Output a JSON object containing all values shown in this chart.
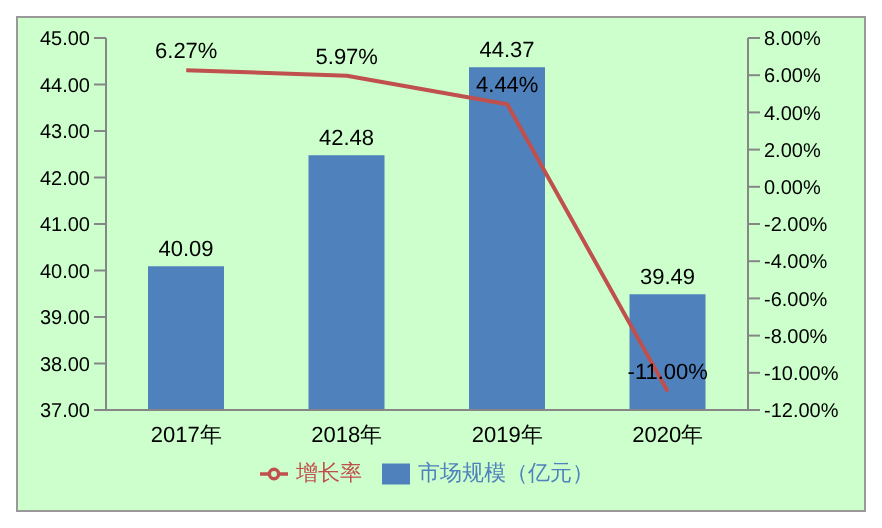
{
  "chart_data": {
    "type": "bar",
    "categories": [
      "2017年",
      "2018年",
      "2019年",
      "2020年"
    ],
    "series": [
      {
        "name": "市场规模（亿元）",
        "color": "#4f81bd",
        "values": [
          40.09,
          42.48,
          44.37,
          39.49
        ]
      },
      {
        "name": "增长率",
        "type": "line",
        "axis": "y2",
        "color": "#c0504d",
        "values": [
          6.27,
          5.97,
          4.44,
          -11.0
        ],
        "value_labels": [
          "6.27%",
          "5.97%",
          "4.44%",
          "-11.00%"
        ]
      }
    ],
    "ylim": [
      37,
      45
    ],
    "yticks": [
      {
        "value": 37,
        "label": "37.00"
      },
      {
        "value": 38,
        "label": "38.00"
      },
      {
        "value": 39,
        "label": "39.00"
      },
      {
        "value": 40,
        "label": "40.00"
      },
      {
        "value": 41,
        "label": "41.00"
      },
      {
        "value": 42,
        "label": "42.00"
      },
      {
        "value": 43,
        "label": "43.00"
      },
      {
        "value": 44,
        "label": "44.00"
      },
      {
        "value": 45,
        "label": "45.00"
      }
    ],
    "y2lim": [
      -12,
      8
    ],
    "y2ticks": [
      {
        "value": -12,
        "label": "-12.00%"
      },
      {
        "value": -10,
        "label": "-10.00%"
      },
      {
        "value": -8,
        "label": "-8.00%"
      },
      {
        "value": -6,
        "label": "-6.00%"
      },
      {
        "value": -4,
        "label": "-4.00%"
      },
      {
        "value": -2,
        "label": "-2.00%"
      },
      {
        "value": 0,
        "label": "0.00%"
      },
      {
        "value": 2,
        "label": "2.00%"
      },
      {
        "value": 4,
        "label": "4.00%"
      },
      {
        "value": 6,
        "label": "6.00%"
      },
      {
        "value": 8,
        "label": "8.00%"
      }
    ],
    "data_labels": true,
    "legend": "bottom",
    "grid": false,
    "marker": "none"
  }
}
